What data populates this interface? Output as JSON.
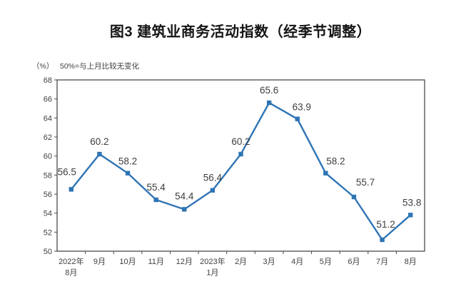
{
  "chart_data": {
    "type": "line",
    "title": "图3 建筑业商务活动指数（经季节调整）",
    "unit": "（%）",
    "note": "50%=与上月比较无变化",
    "categories": [
      "2022年\n8月",
      "9月",
      "10月",
      "11月",
      "12月",
      "2023年\n1月",
      "2月",
      "3月",
      "4月",
      "5月",
      "6月",
      "7月",
      "8月"
    ],
    "values": [
      56.5,
      60.2,
      58.2,
      55.4,
      54.4,
      56.4,
      60.2,
      65.6,
      63.9,
      58.2,
      55.7,
      51.2,
      53.8
    ],
    "data_labels": [
      "56.5",
      "60.2",
      "58.2",
      "55.4",
      "54.4",
      "56.4",
      "60.2",
      "65.6",
      "63.9",
      "58.2",
      "55.7",
      "51.2",
      "53.8"
    ],
    "ylim": [
      50,
      68
    ],
    "ytick_step": 2,
    "grid": false,
    "legend": false,
    "marker": "square",
    "line_color": "#2e74b5",
    "axis_color": "#4a4a4a",
    "label_color": "#3f3f3f"
  }
}
